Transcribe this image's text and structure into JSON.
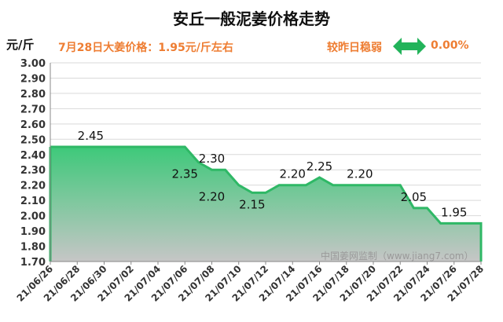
{
  "header": {
    "title": "安丘一般泥姜价格走势",
    "unit": "元/斤",
    "price_note": "7月28日大姜价格：1.95元/斤左右",
    "compare_label": "较昨日稳弱",
    "change": "0.00%"
  },
  "watermark": "中国姜网监制（www.jiang7.com）",
  "colors": {
    "line": "#2fb866",
    "fill_top": "#3ec97a",
    "fill_bottom": "#c6c6c6",
    "accent": "#ee7d32",
    "arrow": "#22b35a"
  },
  "chart_data": {
    "type": "area",
    "title": "安丘一般泥姜价格走势",
    "ylabel": "元/斤",
    "ylim": [
      1.7,
      3.0
    ],
    "yticks": [
      "1.70",
      "1.80",
      "1.90",
      "2.00",
      "2.10",
      "2.20",
      "2.30",
      "2.40",
      "2.50",
      "2.60",
      "2.70",
      "2.80",
      "2.90",
      "3.00"
    ],
    "xticks": [
      "21/06/26",
      "21/06/28",
      "21/06/30",
      "21/07/02",
      "21/07/04",
      "21/07/06",
      "21/07/08",
      "21/07/10",
      "21/07/12",
      "21/07/14",
      "21/07/16",
      "21/07/18",
      "21/07/20",
      "21/07/22",
      "21/07/24",
      "21/07/26",
      "21/07/28"
    ],
    "series": [
      {
        "x": [
          "21/06/26",
          "21/06/27",
          "21/06/28",
          "21/06/29",
          "21/06/30",
          "21/07/01",
          "21/07/02",
          "21/07/03",
          "21/07/04",
          "21/07/05",
          "21/07/06",
          "21/07/07",
          "21/07/08",
          "21/07/09",
          "21/07/10",
          "21/07/11",
          "21/07/12",
          "21/07/13",
          "21/07/14",
          "21/07/15",
          "21/07/16",
          "21/07/17",
          "21/07/18",
          "21/07/19",
          "21/07/20",
          "21/07/21",
          "21/07/22",
          "21/07/23",
          "21/07/24",
          "21/07/25",
          "21/07/26",
          "21/07/27",
          "21/07/28"
        ],
        "values": [
          2.45,
          2.45,
          2.45,
          2.45,
          2.45,
          2.45,
          2.45,
          2.45,
          2.45,
          2.45,
          2.45,
          2.35,
          2.3,
          2.3,
          2.2,
          2.15,
          2.15,
          2.2,
          2.2,
          2.2,
          2.25,
          2.2,
          2.2,
          2.2,
          2.2,
          2.2,
          2.2,
          2.05,
          2.05,
          1.95,
          1.95,
          1.95,
          1.95
        ]
      }
    ],
    "annotations": [
      {
        "x": "21/06/29",
        "value": "2.45",
        "pos": "above"
      },
      {
        "x": "21/07/06",
        "value": "2.35",
        "pos": "below"
      },
      {
        "x": "21/07/08",
        "value": "2.30",
        "pos": "above"
      },
      {
        "x": "21/07/08",
        "value": "2.20",
        "pos": "below"
      },
      {
        "x": "21/07/11",
        "value": "2.15",
        "pos": "below"
      },
      {
        "x": "21/07/14",
        "value": "2.20",
        "pos": "above"
      },
      {
        "x": "21/07/16",
        "value": "2.25",
        "pos": "above"
      },
      {
        "x": "21/07/19",
        "value": "2.20",
        "pos": "above"
      },
      {
        "x": "21/07/23",
        "value": "2.05",
        "pos": "above"
      },
      {
        "x": "21/07/26",
        "value": "1.95",
        "pos": "above"
      }
    ]
  }
}
